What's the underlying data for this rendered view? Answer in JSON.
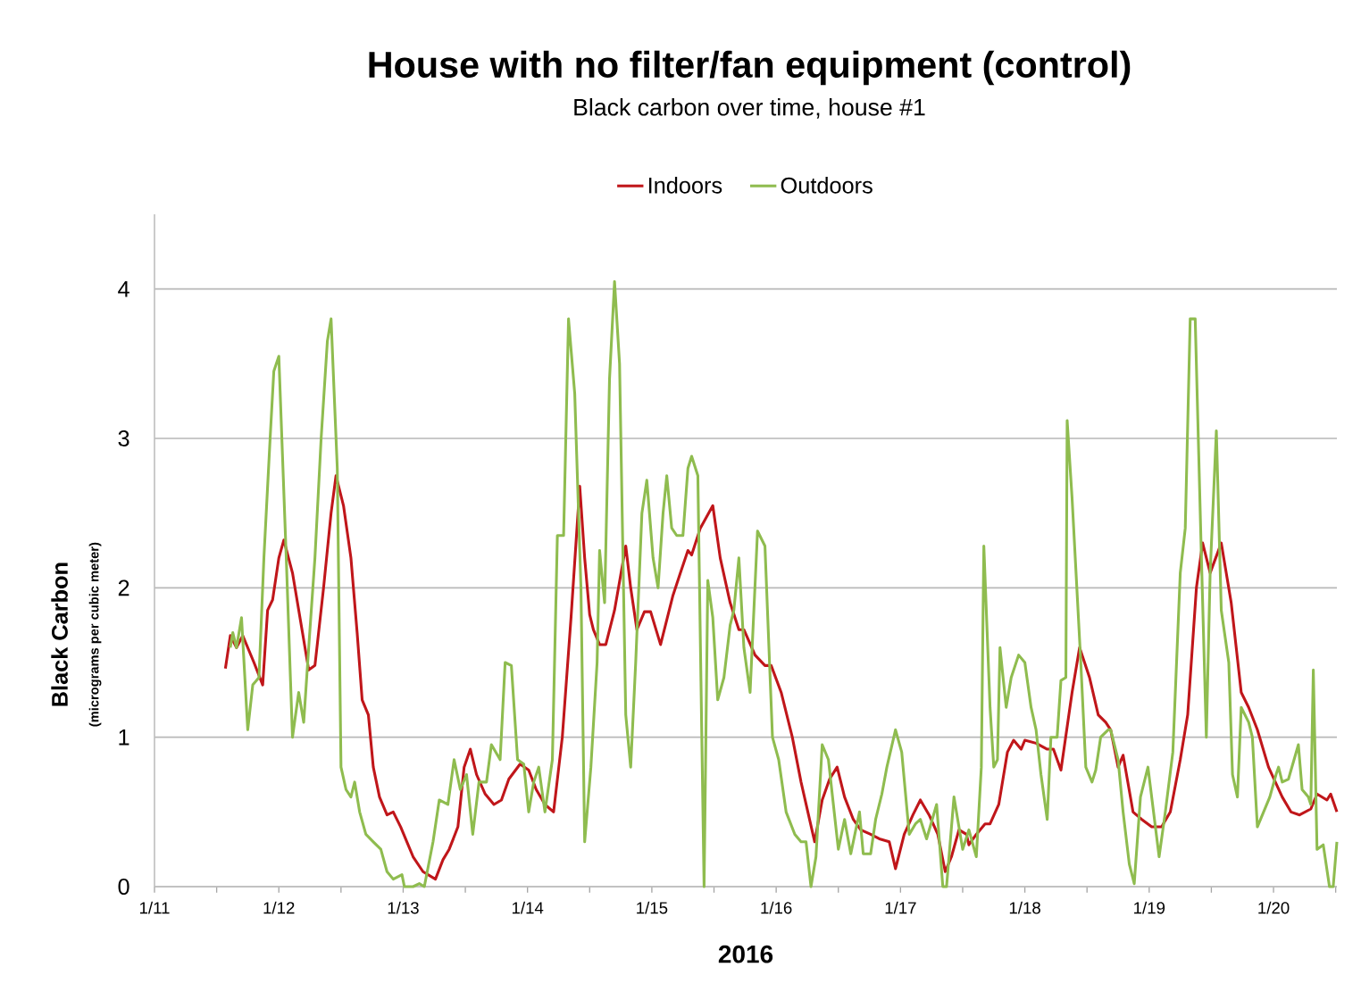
{
  "chart_data": {
    "type": "line",
    "title": "House with no filter/fan equipment (control)",
    "subtitle": "Black carbon over time, house #1",
    "xlabel": "2016",
    "ylabel": "Black Carbon",
    "annotations": [
      "(micrograms per cubic meter)"
    ],
    "legend": "top",
    "grid": "y",
    "line_style": "solid",
    "xlim": [
      "2016-01-11",
      "2016-01-20T12:14"
    ],
    "ylim": [
      0,
      4.5
    ],
    "yticks": [
      0,
      1,
      2,
      3,
      4
    ],
    "xticks": [
      {
        "value": "2016-01-11",
        "label": "1/11"
      },
      {
        "value": "2016-01-11T12:00",
        "label": null
      },
      {
        "value": "2016-01-12",
        "label": "1/12"
      },
      {
        "value": "2016-01-12T12:00",
        "label": null
      },
      {
        "value": "2016-01-13",
        "label": "1/13"
      },
      {
        "value": "2016-01-13T12:00",
        "label": null
      },
      {
        "value": "2016-01-14",
        "label": "1/14"
      },
      {
        "value": "2016-01-14T12:00",
        "label": null
      },
      {
        "value": "2016-01-15",
        "label": "1/15"
      },
      {
        "value": "2016-01-15T12:00",
        "label": null
      },
      {
        "value": "2016-01-16",
        "label": "1/16"
      },
      {
        "value": "2016-01-16T12:00",
        "label": null
      },
      {
        "value": "2016-01-17",
        "label": "1/17"
      },
      {
        "value": "2016-01-17T12:00",
        "label": null
      },
      {
        "value": "2016-01-18",
        "label": "1/18"
      },
      {
        "value": "2016-01-18T12:00",
        "label": null
      },
      {
        "value": "2016-01-19",
        "label": "1/19"
      },
      {
        "value": "2016-01-19T12:00",
        "label": null
      },
      {
        "value": "2016-01-20",
        "label": "1/20"
      },
      {
        "value": "2016-01-20T12:00",
        "label": null
      }
    ],
    "series": [
      {
        "name": "Indoors",
        "color": "#c0161a",
        "x": [
          "2016-01-11T13:41",
          "2016-01-11T14:38",
          "2016-01-11T15:50",
          "2016-01-11T17:02",
          "2016-01-11T19:12",
          "2016-01-11T20:53",
          "2016-01-11T21:50",
          "2016-01-11T22:48",
          "2016-01-12T00:00",
          "2016-01-12T00:58",
          "2016-01-12T02:38",
          "2016-01-12T04:34",
          "2016-01-12T05:46",
          "2016-01-12T06:58",
          "2016-01-12T08:38",
          "2016-01-12T10:05",
          "2016-01-12T11:02",
          "2016-01-12T12:29",
          "2016-01-12T13:55",
          "2016-01-12T15:07",
          "2016-01-12T16:05",
          "2016-01-12T17:17",
          "2016-01-12T18:14",
          "2016-01-12T19:26",
          "2016-01-12T20:53",
          "2016-01-12T22:05",
          "2016-01-12T23:31",
          "2016-01-13T00:43",
          "2016-01-13T01:55",
          "2016-01-13T03:50",
          "2016-01-13T06:14",
          "2016-01-13T07:41",
          "2016-01-13T08:53",
          "2016-01-13T10:34",
          "2016-01-13T11:46",
          "2016-01-13T12:58",
          "2016-01-13T14:10",
          "2016-01-13T15:50",
          "2016-01-13T17:31",
          "2016-01-13T18:58",
          "2016-01-13T20:24",
          "2016-01-13T22:34",
          "2016-01-14T00:14",
          "2016-01-14T01:41",
          "2016-01-14T03:22",
          "2016-01-14T05:02",
          "2016-01-14T06:43",
          "2016-01-14T08:24",
          "2016-01-14T10:05",
          "2016-01-14T11:02",
          "2016-01-14T12:00",
          "2016-01-14T12:43",
          "2016-01-14T13:55",
          "2016-01-14T15:07",
          "2016-01-14T16:48",
          "2016-01-14T18:58",
          "2016-01-14T19:55",
          "2016-01-14T21:07",
          "2016-01-14T22:34",
          "2016-01-14T23:46",
          "2016-01-15T01:41",
          "2016-01-15T04:05",
          "2016-01-15T05:31",
          "2016-01-15T06:58",
          "2016-01-15T07:41",
          "2016-01-15T09:22",
          "2016-01-15T11:46",
          "2016-01-15T13:12",
          "2016-01-15T15:07",
          "2016-01-15T16:48",
          "2016-01-15T17:46",
          "2016-01-15T19:55",
          "2016-01-15T21:50",
          "2016-01-15T23:02",
          "2016-01-16T00:58",
          "2016-01-16T03:07",
          "2016-01-16T04:48",
          "2016-01-16T07:26",
          "2016-01-16T08:53",
          "2016-01-16T10:19",
          "2016-01-16T11:46",
          "2016-01-16T13:12",
          "2016-01-16T14:53",
          "2016-01-16T16:19",
          "2016-01-16T18:14",
          "2016-01-16T19:55",
          "2016-01-16T21:50",
          "2016-01-16T23:02",
          "2016-01-17T00:43",
          "2016-01-17T02:24",
          "2016-01-17T03:50",
          "2016-01-17T05:31",
          "2016-01-17T07:12",
          "2016-01-17T08:38",
          "2016-01-17T09:50",
          "2016-01-17T11:17",
          "2016-01-17T12:43",
          "2016-01-17T13:12",
          "2016-01-17T14:38",
          "2016-01-17T16:19",
          "2016-01-17T17:17",
          "2016-01-17T18:58",
          "2016-01-17T20:38",
          "2016-01-17T21:50",
          "2016-01-17T23:17",
          "2016-01-18T00:00",
          "2016-01-18T02:10",
          "2016-01-18T04:19",
          "2016-01-18T05:31",
          "2016-01-18T06:58",
          "2016-01-18T09:07",
          "2016-01-18T10:34",
          "2016-01-18T12:29",
          "2016-01-18T14:10",
          "2016-01-18T15:36",
          "2016-01-18T16:34",
          "2016-01-18T18:00",
          "2016-01-18T18:58",
          "2016-01-18T20:53",
          "2016-01-18T22:34",
          "2016-01-19T00:29",
          "2016-01-19T02:24",
          "2016-01-19T04:05",
          "2016-01-19T06:00",
          "2016-01-19T07:26",
          "2016-01-19T09:07",
          "2016-01-19T10:19",
          "2016-01-19T11:46",
          "2016-01-19T13:55",
          "2016-01-19T15:50",
          "2016-01-19T17:46",
          "2016-01-19T19:12",
          "2016-01-19T20:53",
          "2016-01-19T23:02",
          "2016-01-20T01:41",
          "2016-01-20T03:22",
          "2016-01-20T05:02",
          "2016-01-20T07:12",
          "2016-01-20T08:24",
          "2016-01-20T10:19",
          "2016-01-20T11:02",
          "2016-01-20T12:14"
        ],
        "values": [
          1.46,
          1.68,
          1.6,
          1.68,
          1.5,
          1.35,
          1.85,
          1.92,
          2.2,
          2.32,
          2.1,
          1.7,
          1.45,
          1.48,
          2.0,
          2.5,
          2.75,
          2.55,
          2.2,
          1.7,
          1.25,
          1.15,
          0.8,
          0.6,
          0.48,
          0.5,
          0.4,
          0.3,
          0.2,
          0.1,
          0.05,
          0.18,
          0.25,
          0.4,
          0.8,
          0.92,
          0.75,
          0.62,
          0.55,
          0.58,
          0.72,
          0.82,
          0.78,
          0.65,
          0.55,
          0.5,
          1.0,
          1.8,
          2.68,
          2.2,
          1.82,
          1.72,
          1.62,
          1.62,
          1.85,
          2.28,
          2.0,
          1.72,
          1.84,
          1.84,
          1.62,
          1.95,
          2.1,
          2.25,
          2.22,
          2.4,
          2.55,
          2.2,
          1.9,
          1.72,
          1.72,
          1.55,
          1.48,
          1.48,
          1.3,
          1.0,
          0.7,
          0.3,
          0.58,
          0.72,
          0.8,
          0.6,
          0.45,
          0.38,
          0.35,
          0.32,
          0.3,
          0.12,
          0.35,
          0.48,
          0.58,
          0.48,
          0.35,
          0.1,
          0.2,
          0.38,
          0.35,
          0.28,
          0.35,
          0.42,
          0.42,
          0.55,
          0.9,
          0.98,
          0.92,
          0.98,
          0.96,
          0.92,
          0.92,
          0.78,
          1.3,
          1.6,
          1.4,
          1.15,
          1.1,
          1.05,
          0.8,
          0.88,
          0.5,
          0.45,
          0.4,
          0.4,
          0.5,
          0.85,
          1.15,
          2.0,
          2.3,
          2.1,
          2.3,
          1.9,
          1.3,
          1.2,
          1.05,
          0.8,
          0.6,
          0.5,
          0.48,
          0.52,
          0.62,
          0.58,
          0.62,
          0.5
        ]
      },
      {
        "name": "Outdoors",
        "color": "#8fbc4f",
        "x": [
          "2016-01-11T14:38",
          "2016-01-11T15:07",
          "2016-01-11T15:50",
          "2016-01-11T16:48",
          "2016-01-11T18:00",
          "2016-01-11T18:58",
          "2016-01-11T20:10",
          "2016-01-11T21:07",
          "2016-01-11T22:19",
          "2016-01-11T23:02",
          "2016-01-12T00:00",
          "2016-01-12T01:26",
          "2016-01-12T02:38",
          "2016-01-12T03:50",
          "2016-01-12T04:48",
          "2016-01-12T05:46",
          "2016-01-12T06:58",
          "2016-01-12T08:10",
          "2016-01-12T09:22",
          "2016-01-12T10:05",
          "2016-01-12T11:17",
          "2016-01-12T12:00",
          "2016-01-12T12:58",
          "2016-01-12T13:55",
          "2016-01-12T14:38",
          "2016-01-12T15:36",
          "2016-01-12T16:48",
          "2016-01-12T18:14",
          "2016-01-12T19:41",
          "2016-01-12T20:53",
          "2016-01-12T22:05",
          "2016-01-12T23:46",
          "2016-01-13T00:14",
          "2016-01-13T01:55",
          "2016-01-13T03:07",
          "2016-01-13T04:05",
          "2016-01-13T05:46",
          "2016-01-13T06:58",
          "2016-01-13T08:38",
          "2016-01-13T09:50",
          "2016-01-13T11:02",
          "2016-01-13T12:14",
          "2016-01-13T13:26",
          "2016-01-13T14:38",
          "2016-01-13T16:05",
          "2016-01-13T17:02",
          "2016-01-13T18:43",
          "2016-01-13T19:41",
          "2016-01-13T20:53",
          "2016-01-13T22:05",
          "2016-01-13T23:17",
          "2016-01-14T00:14",
          "2016-01-14T01:12",
          "2016-01-14T02:10",
          "2016-01-14T03:22",
          "2016-01-14T04:48",
          "2016-01-14T05:46",
          "2016-01-14T06:58",
          "2016-01-14T07:55",
          "2016-01-14T09:07",
          "2016-01-14T10:19",
          "2016-01-14T11:02",
          "2016-01-14T12:14",
          "2016-01-14T13:26",
          "2016-01-14T13:55",
          "2016-01-14T14:53",
          "2016-01-14T15:50",
          "2016-01-14T16:48",
          "2016-01-14T17:46",
          "2016-01-14T18:58",
          "2016-01-14T19:55",
          "2016-01-14T20:53",
          "2016-01-14T22:05",
          "2016-01-14T23:02",
          "2016-01-15T00:14",
          "2016-01-15T01:12",
          "2016-01-15T02:10",
          "2016-01-15T02:53",
          "2016-01-15T03:50",
          "2016-01-15T04:48",
          "2016-01-15T06:00",
          "2016-01-15T06:58",
          "2016-01-15T07:41",
          "2016-01-15T08:53",
          "2016-01-15T10:05",
          "2016-01-15T10:48",
          "2016-01-15T11:46",
          "2016-01-15T12:43",
          "2016-01-15T13:55",
          "2016-01-15T15:07",
          "2016-01-15T15:50",
          "2016-01-15T16:48",
          "2016-01-15T17:46",
          "2016-01-15T18:58",
          "2016-01-15T20:24",
          "2016-01-15T21:50",
          "2016-01-15T23:17",
          "2016-01-16T00:29",
          "2016-01-16T01:55",
          "2016-01-16T03:36",
          "2016-01-16T04:48",
          "2016-01-16T05:46",
          "2016-01-16T06:43",
          "2016-01-16T07:41",
          "2016-01-16T08:53",
          "2016-01-16T10:05",
          "2016-01-16T12:00",
          "2016-01-16T13:12",
          "2016-01-16T14:24",
          "2016-01-16T16:05",
          "2016-01-16T16:48",
          "2016-01-16T18:14",
          "2016-01-16T19:12",
          "2016-01-16T20:24",
          "2016-01-16T21:22",
          "2016-01-16T23:02",
          "2016-01-17T00:14",
          "2016-01-17T01:41",
          "2016-01-17T02:53",
          "2016-01-17T03:50",
          "2016-01-17T05:02",
          "2016-01-17T06:58",
          "2016-01-17T08:10",
          "2016-01-17T08:53",
          "2016-01-17T10:19",
          "2016-01-17T12:00",
          "2016-01-17T13:12",
          "2016-01-17T14:38",
          "2016-01-17T15:36",
          "2016-01-17T16:05",
          "2016-01-17T17:17",
          "2016-01-17T18:00",
          "2016-01-17T18:43",
          "2016-01-17T19:12",
          "2016-01-17T20:24",
          "2016-01-17T21:22",
          "2016-01-17T22:48",
          "2016-01-18T00:00",
          "2016-01-18T01:12",
          "2016-01-18T02:10",
          "2016-01-18T03:07",
          "2016-01-18T04:19",
          "2016-01-18T05:02",
          "2016-01-18T06:14",
          "2016-01-18T06:58",
          "2016-01-18T07:55",
          "2016-01-18T08:10",
          "2016-01-18T09:07",
          "2016-01-18T10:48",
          "2016-01-18T11:46",
          "2016-01-18T12:58",
          "2016-01-18T13:41",
          "2016-01-18T14:38",
          "2016-01-18T16:05",
          "2016-01-18T16:34",
          "2016-01-18T18:00",
          "2016-01-18T18:58",
          "2016-01-18T20:10",
          "2016-01-18T21:07",
          "2016-01-18T22:19",
          "2016-01-18T23:46",
          "2016-01-19T00:29",
          "2016-01-19T01:55",
          "2016-01-19T03:07",
          "2016-01-19T04:34",
          "2016-01-19T06:00",
          "2016-01-19T06:58",
          "2016-01-19T07:55",
          "2016-01-19T08:53",
          "2016-01-19T10:05",
          "2016-01-19T11:02",
          "2016-01-19T11:46",
          "2016-01-19T12:58",
          "2016-01-19T13:55",
          "2016-01-19T15:22",
          "2016-01-19T16:05",
          "2016-01-19T17:02",
          "2016-01-19T17:46",
          "2016-01-19T19:12",
          "2016-01-19T19:55",
          "2016-01-19T20:53",
          "2016-01-19T22:05",
          "2016-01-19T23:17",
          "2016-01-20T00:29",
          "2016-01-20T00:58",
          "2016-01-20T01:41",
          "2016-01-20T02:53",
          "2016-01-20T04:48",
          "2016-01-20T05:31",
          "2016-01-20T06:43",
          "2016-01-20T07:12",
          "2016-01-20T07:41",
          "2016-01-20T08:24",
          "2016-01-20T09:36",
          "2016-01-20T10:48",
          "2016-01-20T11:31",
          "2016-01-20T12:14"
        ],
        "values": [
          1.6,
          1.7,
          1.6,
          1.8,
          1.05,
          1.35,
          1.4,
          2.2,
          3.0,
          3.45,
          3.55,
          2.2,
          1.0,
          1.3,
          1.1,
          1.6,
          2.2,
          3.0,
          3.65,
          3.8,
          2.8,
          0.8,
          0.65,
          0.6,
          0.7,
          0.5,
          0.35,
          0.3,
          0.25,
          0.1,
          0.05,
          0.08,
          0,
          0,
          0.02,
          0,
          0.3,
          0.58,
          0.55,
          0.85,
          0.65,
          0.75,
          0.35,
          0.7,
          0.7,
          0.95,
          0.85,
          1.5,
          1.48,
          0.85,
          0.82,
          0.5,
          0.7,
          0.8,
          0.5,
          0.85,
          2.35,
          2.35,
          3.8,
          3.3,
          2.0,
          0.3,
          0.8,
          1.5,
          2.25,
          1.9,
          3.4,
          4.05,
          3.5,
          1.15,
          0.8,
          1.5,
          2.5,
          2.72,
          2.2,
          2.0,
          2.5,
          2.75,
          2.4,
          2.35,
          2.35,
          2.8,
          2.88,
          2.75,
          0,
          2.05,
          1.8,
          1.25,
          1.4,
          1.75,
          1.85,
          2.2,
          1.6,
          1.3,
          2.38,
          2.28,
          1.0,
          0.85,
          0.5,
          0.35,
          0.3,
          0.3,
          0,
          0.2,
          0.95,
          0.85,
          0.25,
          0.45,
          0.22,
          0.5,
          0.22,
          0.22,
          0.45,
          0.62,
          0.8,
          1.05,
          0.9,
          0.35,
          0.42,
          0.45,
          0.32,
          0.55,
          0,
          0,
          0.6,
          0.25,
          0.38,
          0.2,
          0.8,
          2.28,
          1.2,
          0.8,
          0.85,
          1.6,
          1.2,
          1.4,
          1.55,
          1.5,
          1.2,
          1.05,
          0.75,
          0.45,
          1.0,
          1.0,
          1.38,
          1.4,
          3.12,
          2.6,
          1.5,
          0.8,
          0.7,
          0.78,
          1.0,
          1.05,
          1.05,
          0.85,
          0.5,
          0.15,
          0.02,
          0.6,
          0.8,
          0.6,
          0.2,
          0.5,
          0.9,
          2.1,
          2.4,
          3.8,
          3.8,
          2.2,
          1.0,
          2.1,
          3.05,
          1.85,
          1.5,
          0.75,
          0.6,
          1.2,
          1.1,
          1.0,
          0.4,
          0.5,
          0.6,
          0.75,
          0.8,
          0.7,
          0.72,
          0.95,
          0.65,
          0.6,
          0.55,
          1.45,
          0.25,
          0.28,
          0,
          0,
          0.3
        ]
      }
    ]
  }
}
